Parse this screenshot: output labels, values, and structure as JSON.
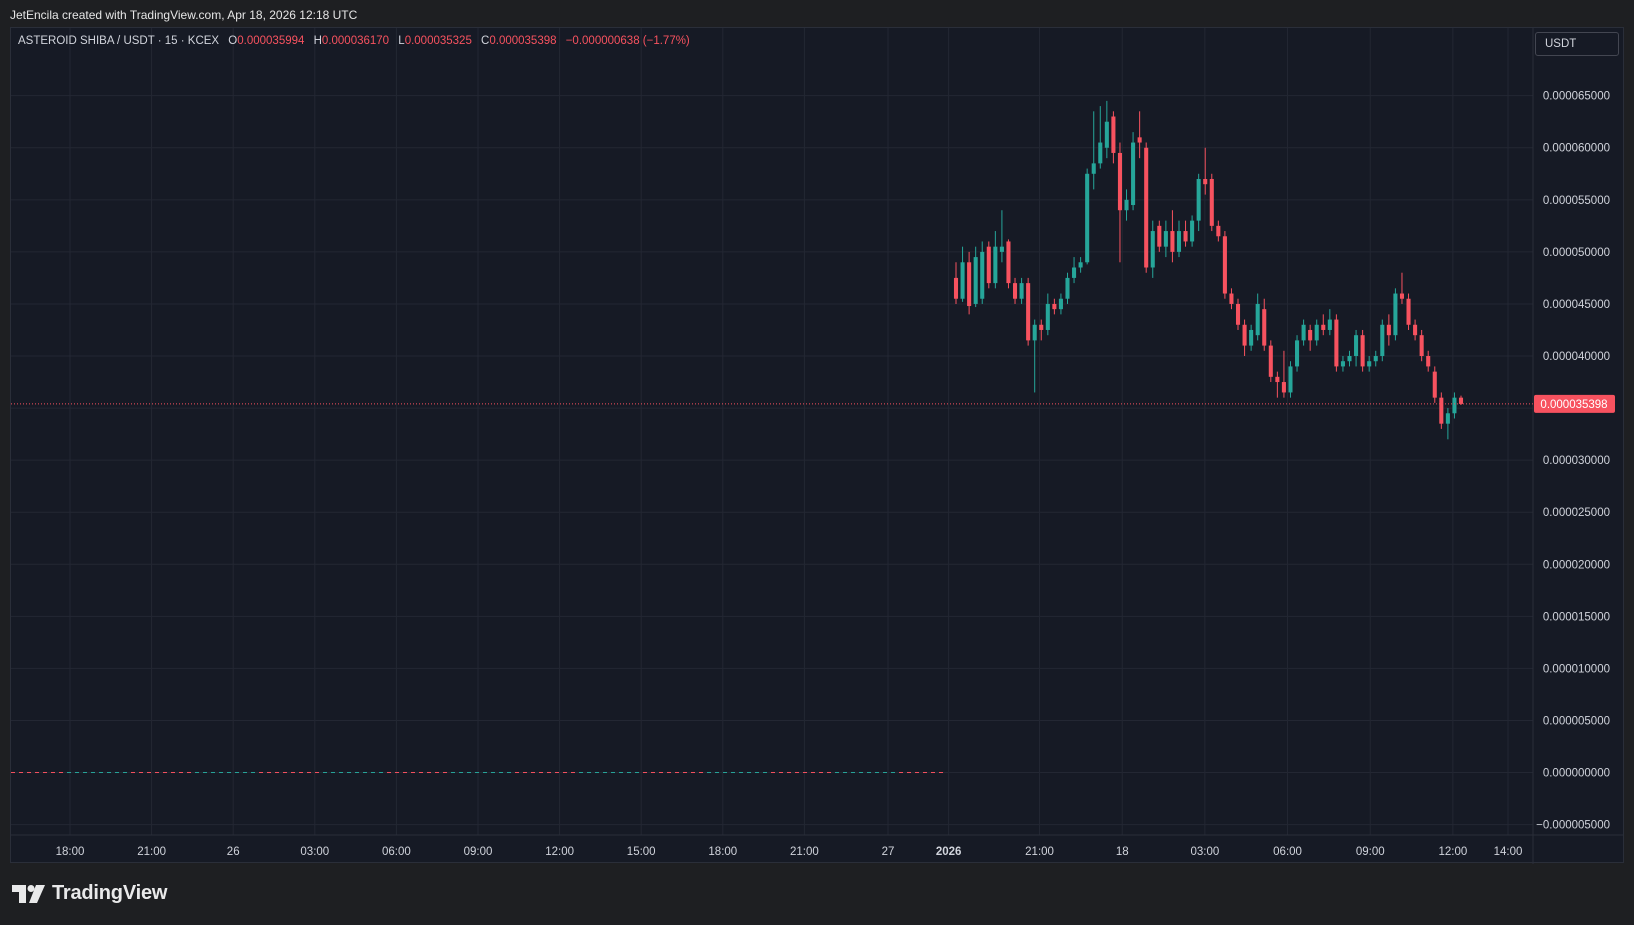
{
  "header": {
    "caption": "JetEncila created with TradingView.com, Apr 18, 2026 12:18 UTC"
  },
  "legend": {
    "symbol": "ASTEROID SHIBA / USDT · 15 · KCEX",
    "o_label": "O",
    "o_value": "0.000035994",
    "h_label": "H",
    "h_value": "0.000036170",
    "l_label": "L",
    "l_value": "0.000035325",
    "c_label": "C",
    "c_value": "0.000035398",
    "change": "−0.000000638 (−1.77%)"
  },
  "currency_button": "USDT",
  "footer": {
    "brand": "TradingView"
  },
  "colors": {
    "background": "#161a25",
    "grid": "#232733",
    "up": "#26a69a",
    "down": "#f7525f",
    "text": "#d1d4dc"
  },
  "chart_data": {
    "type": "candlestick",
    "symbol": "ASTEROID SHIBA / USDT",
    "interval": "15",
    "exchange": "KCEX",
    "ylim": [
      -6e-06,
      7.15e-05
    ],
    "y_ticks": [
      "0.000065000",
      "0.000060000",
      "0.000055000",
      "0.000050000",
      "0.000045000",
      "0.000040000",
      "0.000035000",
      "0.000030000",
      "0.000025000",
      "0.000020000",
      "0.000015000",
      "0.000010000",
      "0.000005000",
      "0.000000000",
      "−0.000005000"
    ],
    "y_tick_values": [
      6.5e-05,
      6e-05,
      5.5e-05,
      5e-05,
      4.5e-05,
      4e-05,
      3.5e-05,
      3e-05,
      2.5e-05,
      2e-05,
      1.5e-05,
      1e-05,
      5e-06,
      0,
      -5e-06
    ],
    "x_ticks": [
      {
        "label": "18:00",
        "day": 0,
        "hour": 18
      },
      {
        "label": "21:00",
        "day": 0,
        "hour": 21
      },
      {
        "label": "26",
        "day": 1,
        "hour": 0
      },
      {
        "label": "03:00",
        "day": 1,
        "hour": 3
      },
      {
        "label": "06:00",
        "day": 1,
        "hour": 6
      },
      {
        "label": "09:00",
        "day": 1,
        "hour": 9
      },
      {
        "label": "12:00",
        "day": 1,
        "hour": 12
      },
      {
        "label": "15:00",
        "day": 1,
        "hour": 15
      },
      {
        "label": "18:00",
        "day": 1,
        "hour": 18
      },
      {
        "label": "21:00",
        "day": 1,
        "hour": 21
      },
      {
        "label": "27",
        "day": 2,
        "hour": 0
      },
      {
        "label": "2026",
        "day": 2,
        "hour": 2.2,
        "bold": true
      },
      {
        "label": "21:00",
        "day": 2,
        "hour": 5.5
      },
      {
        "label": "18",
        "day": 2,
        "hour": 8.5
      },
      {
        "label": "03:00",
        "day": 2,
        "hour": 11.5
      },
      {
        "label": "06:00",
        "day": 2,
        "hour": 14.5
      },
      {
        "label": "09:00",
        "day": 2,
        "hour": 17.5
      },
      {
        "label": "12:00",
        "day": 2,
        "hour": 20.5
      },
      {
        "label": "14:00",
        "day": 2,
        "hour": 22.5
      }
    ],
    "last_price": 3.5398e-05,
    "last_price_label": "0.000035398",
    "zero_line": {
      "value": 0,
      "until_day": 2,
      "until_hour": 2.1
    },
    "candles": [
      {
        "o": 4.75e-05,
        "h": 4.9e-05,
        "l": 4.5e-05,
        "c": 4.55e-05
      },
      {
        "o": 4.55e-05,
        "h": 5.05e-05,
        "l": 4.52e-05,
        "c": 4.9e-05
      },
      {
        "o": 4.9e-05,
        "h": 5e-05,
        "l": 4.4e-05,
        "c": 4.48e-05
      },
      {
        "o": 4.5e-05,
        "h": 5.05e-05,
        "l": 4.47e-05,
        "c": 4.95e-05
      },
      {
        "o": 4.55e-05,
        "h": 5.1e-05,
        "l": 4.5e-05,
        "c": 5e-05
      },
      {
        "o": 5.05e-05,
        "h": 5.1e-05,
        "l": 4.65e-05,
        "c": 4.7e-05
      },
      {
        "o": 4.7e-05,
        "h": 5.2e-05,
        "l": 4.65e-05,
        "c": 5.05e-05
      },
      {
        "o": 5e-05,
        "h": 5.4e-05,
        "l": 4.9e-05,
        "c": 5.05e-05
      },
      {
        "o": 5.1e-05,
        "h": 5.12e-05,
        "l": 4.65e-05,
        "c": 4.7e-05
      },
      {
        "o": 4.7e-05,
        "h": 4.75e-05,
        "l": 4.5e-05,
        "c": 4.55e-05
      },
      {
        "o": 4.55e-05,
        "h": 4.75e-05,
        "l": 4.5e-05,
        "c": 4.7e-05
      },
      {
        "o": 4.7e-05,
        "h": 4.75e-05,
        "l": 4.1e-05,
        "c": 4.15e-05
      },
      {
        "o": 4.15e-05,
        "h": 4.35e-05,
        "l": 3.65e-05,
        "c": 4.3e-05
      },
      {
        "o": 4.3e-05,
        "h": 4.35e-05,
        "l": 4.15e-05,
        "c": 4.25e-05
      },
      {
        "o": 4.25e-05,
        "h": 4.6e-05,
        "l": 4.2e-05,
        "c": 4.5e-05
      },
      {
        "o": 4.5e-05,
        "h": 4.55e-05,
        "l": 4.4e-05,
        "c": 4.45e-05
      },
      {
        "o": 4.45e-05,
        "h": 4.6e-05,
        "l": 4.4e-05,
        "c": 4.55e-05
      },
      {
        "o": 4.55e-05,
        "h": 4.8e-05,
        "l": 4.5e-05,
        "c": 4.75e-05
      },
      {
        "o": 4.75e-05,
        "h": 4.95e-05,
        "l": 4.7e-05,
        "c": 4.85e-05
      },
      {
        "o": 4.85e-05,
        "h": 4.95e-05,
        "l": 4.8e-05,
        "c": 4.9e-05
      },
      {
        "o": 4.9e-05,
        "h": 5.8e-05,
        "l": 4.88e-05,
        "c": 5.75e-05
      },
      {
        "o": 5.75e-05,
        "h": 6.35e-05,
        "l": 5.6e-05,
        "c": 5.85e-05
      },
      {
        "o": 5.85e-05,
        "h": 6.4e-05,
        "l": 5.8e-05,
        "c": 6.05e-05
      },
      {
        "o": 6e-05,
        "h": 6.45e-05,
        "l": 5.9e-05,
        "c": 6.25e-05
      },
      {
        "o": 6.3e-05,
        "h": 6.35e-05,
        "l": 5.85e-05,
        "c": 5.95e-05
      },
      {
        "o": 5.95e-05,
        "h": 6.05e-05,
        "l": 4.9e-05,
        "c": 5.4e-05
      },
      {
        "o": 5.4e-05,
        "h": 5.6e-05,
        "l": 5.3e-05,
        "c": 5.5e-05
      },
      {
        "o": 5.45e-05,
        "h": 6.15e-05,
        "l": 5.4e-05,
        "c": 6.05e-05
      },
      {
        "o": 6.1e-05,
        "h": 6.35e-05,
        "l": 5.9e-05,
        "c": 6.05e-05
      },
      {
        "o": 6e-05,
        "h": 6.05e-05,
        "l": 4.8e-05,
        "c": 4.85e-05
      },
      {
        "o": 4.85e-05,
        "h": 5.3e-05,
        "l": 4.75e-05,
        "c": 5.2e-05
      },
      {
        "o": 5.25e-05,
        "h": 5.3e-05,
        "l": 5e-05,
        "c": 5.05e-05
      },
      {
        "o": 5.05e-05,
        "h": 5.3e-05,
        "l": 4.95e-05,
        "c": 5.2e-05
      },
      {
        "o": 5.2e-05,
        "h": 5.4e-05,
        "l": 4.9e-05,
        "c": 5e-05
      },
      {
        "o": 5e-05,
        "h": 5.3e-05,
        "l": 4.95e-05,
        "c": 5.2e-05
      },
      {
        "o": 5.2e-05,
        "h": 5.3e-05,
        "l": 5.05e-05,
        "c": 5.1e-05
      },
      {
        "o": 5.1e-05,
        "h": 5.35e-05,
        "l": 5.05e-05,
        "c": 5.3e-05
      },
      {
        "o": 5.3e-05,
        "h": 5.75e-05,
        "l": 5.2e-05,
        "c": 5.7e-05
      },
      {
        "o": 5.7e-05,
        "h": 6e-05,
        "l": 5.55e-05,
        "c": 5.65e-05
      },
      {
        "o": 5.7e-05,
        "h": 5.75e-05,
        "l": 5.2e-05,
        "c": 5.25e-05
      },
      {
        "o": 5.25e-05,
        "h": 5.3e-05,
        "l": 5.1e-05,
        "c": 5.15e-05
      },
      {
        "o": 5.15e-05,
        "h": 5.2e-05,
        "l": 4.55e-05,
        "c": 4.6e-05
      },
      {
        "o": 4.6e-05,
        "h": 4.65e-05,
        "l": 4.45e-05,
        "c": 4.5e-05
      },
      {
        "o": 4.5e-05,
        "h": 4.55e-05,
        "l": 4.25e-05,
        "c": 4.3e-05
      },
      {
        "o": 4.3e-05,
        "h": 4.35e-05,
        "l": 4e-05,
        "c": 4.1e-05
      },
      {
        "o": 4.1e-05,
        "h": 4.3e-05,
        "l": 4.05e-05,
        "c": 4.25e-05
      },
      {
        "o": 4.2e-05,
        "h": 4.6e-05,
        "l": 4.15e-05,
        "c": 4.5e-05
      },
      {
        "o": 4.45e-05,
        "h": 4.55e-05,
        "l": 4.05e-05,
        "c": 4.1e-05
      },
      {
        "o": 4.1e-05,
        "h": 4.15e-05,
        "l": 3.75e-05,
        "c": 3.8e-05
      },
      {
        "o": 3.8e-05,
        "h": 3.85e-05,
        "l": 3.6e-05,
        "c": 3.75e-05
      },
      {
        "o": 3.75e-05,
        "h": 4.05e-05,
        "l": 3.6e-05,
        "c": 3.65e-05
      },
      {
        "o": 3.65e-05,
        "h": 3.95e-05,
        "l": 3.6e-05,
        "c": 3.9e-05
      },
      {
        "o": 3.9e-05,
        "h": 4.2e-05,
        "l": 3.85e-05,
        "c": 4.15e-05
      },
      {
        "o": 4.15e-05,
        "h": 4.35e-05,
        "l": 4.1e-05,
        "c": 4.3e-05
      },
      {
        "o": 4.25e-05,
        "h": 4.3e-05,
        "l": 4.05e-05,
        "c": 4.15e-05
      },
      {
        "o": 4.15e-05,
        "h": 4.35e-05,
        "l": 4.1e-05,
        "c": 4.3e-05
      },
      {
        "o": 4.3e-05,
        "h": 4.4e-05,
        "l": 4.2e-05,
        "c": 4.25e-05
      },
      {
        "o": 4.25e-05,
        "h": 4.45e-05,
        "l": 4.2e-05,
        "c": 4.35e-05
      },
      {
        "o": 4.35e-05,
        "h": 4.4e-05,
        "l": 3.85e-05,
        "c": 3.9e-05
      },
      {
        "o": 3.9e-05,
        "h": 4e-05,
        "l": 3.85e-05,
        "c": 3.95e-05
      },
      {
        "o": 3.95e-05,
        "h": 4.05e-05,
        "l": 3.9e-05,
        "c": 4e-05
      },
      {
        "o": 4e-05,
        "h": 4.25e-05,
        "l": 3.9e-05,
        "c": 4.2e-05
      },
      {
        "o": 4.2e-05,
        "h": 4.25e-05,
        "l": 3.85e-05,
        "c": 3.9e-05
      },
      {
        "o": 3.9e-05,
        "h": 4e-05,
        "l": 3.85e-05,
        "c": 3.95e-05
      },
      {
        "o": 3.95e-05,
        "h": 4.05e-05,
        "l": 3.9e-05,
        "c": 4e-05
      },
      {
        "o": 4e-05,
        "h": 4.35e-05,
        "l": 3.95e-05,
        "c": 4.3e-05
      },
      {
        "o": 4.3e-05,
        "h": 4.4e-05,
        "l": 4.1e-05,
        "c": 4.2e-05
      },
      {
        "o": 4.2e-05,
        "h": 4.65e-05,
        "l": 4.15e-05,
        "c": 4.6e-05
      },
      {
        "o": 4.6e-05,
        "h": 4.8e-05,
        "l": 4.5e-05,
        "c": 4.55e-05
      },
      {
        "o": 4.55e-05,
        "h": 4.6e-05,
        "l": 4.25e-05,
        "c": 4.3e-05
      },
      {
        "o": 4.3e-05,
        "h": 4.35e-05,
        "l": 4.15e-05,
        "c": 4.2e-05
      },
      {
        "o": 4.2e-05,
        "h": 4.25e-05,
        "l": 3.95e-05,
        "c": 4e-05
      },
      {
        "o": 4e-05,
        "h": 4.05e-05,
        "l": 3.85e-05,
        "c": 3.9e-05
      },
      {
        "o": 3.85e-05,
        "h": 3.9e-05,
        "l": 3.55e-05,
        "c": 3.6e-05
      },
      {
        "o": 3.6e-05,
        "h": 3.65e-05,
        "l": 3.3e-05,
        "c": 3.35e-05
      },
      {
        "o": 3.35e-05,
        "h": 3.5e-05,
        "l": 3.2e-05,
        "c": 3.45e-05
      },
      {
        "o": 3.45e-05,
        "h": 3.65e-05,
        "l": 3.4e-05,
        "c": 3.6e-05
      },
      {
        "o": 3.6e-05,
        "h": 3.62e-05,
        "l": 3.53e-05,
        "c": 3.54e-05
      }
    ]
  }
}
